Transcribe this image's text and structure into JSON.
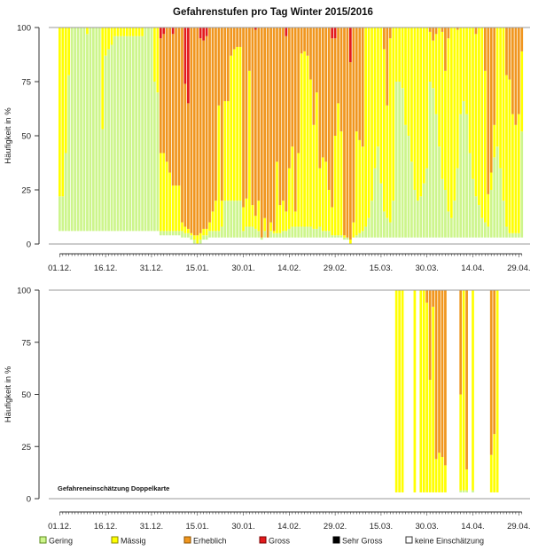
{
  "chart_data": [
    {
      "type": "bar",
      "stacked": true,
      "title": "Gefahrenstufen pro Tag Winter 2015/2016",
      "ylabel": "Häufigkeit in %",
      "xlabel": "",
      "ylim": [
        0,
        100
      ],
      "yticks": [
        "0",
        "25",
        "50",
        "75",
        "100"
      ],
      "xtick_labels": [
        "01.12.",
        "16.12.",
        "31.12.",
        "15.01.",
        "30.01.",
        "14.02.",
        "29.02.",
        "15.03.",
        "30.03.",
        "14.04.",
        "29.04."
      ],
      "first_day": "01.12.2015",
      "stack_order": [
        "keine Einschätzung",
        "Gering",
        "Mässig",
        "Erheblich",
        "Gross"
      ],
      "days": [
        [
          6,
          16,
          78,
          0,
          0
        ],
        [
          6,
          16,
          78,
          0,
          0
        ],
        [
          6,
          36,
          58,
          0,
          0
        ],
        [
          6,
          72,
          22,
          0,
          0
        ],
        [
          6,
          94,
          0,
          0,
          0
        ],
        [
          6,
          94,
          0,
          0,
          0
        ],
        [
          6,
          94,
          0,
          0,
          0
        ],
        [
          6,
          94,
          0,
          0,
          0
        ],
        [
          6,
          94,
          0,
          0,
          0
        ],
        [
          6,
          91,
          3,
          0,
          0
        ],
        [
          6,
          94,
          0,
          0,
          0
        ],
        [
          6,
          94,
          0,
          0,
          0
        ],
        [
          6,
          94,
          0,
          0,
          0
        ],
        [
          6,
          94,
          0,
          0,
          0
        ],
        [
          6,
          47,
          47,
          0,
          0
        ],
        [
          6,
          81,
          13,
          0,
          0
        ],
        [
          6,
          84,
          10,
          0,
          0
        ],
        [
          6,
          86,
          8,
          0,
          0
        ],
        [
          6,
          90,
          4,
          0,
          0
        ],
        [
          6,
          90,
          4,
          0,
          0
        ],
        [
          6,
          90,
          4,
          0,
          0
        ],
        [
          6,
          90,
          4,
          0,
          0
        ],
        [
          6,
          90,
          4,
          0,
          0
        ],
        [
          6,
          90,
          4,
          0,
          0
        ],
        [
          6,
          90,
          4,
          0,
          0
        ],
        [
          6,
          90,
          4,
          0,
          0
        ],
        [
          6,
          90,
          4,
          0,
          0
        ],
        [
          6,
          90,
          4,
          0,
          0
        ],
        [
          6,
          94,
          0,
          0,
          0
        ],
        [
          6,
          94,
          0,
          0,
          0
        ],
        [
          6,
          94,
          0,
          0,
          0
        ],
        [
          6,
          69,
          25,
          0,
          0
        ],
        [
          6,
          64,
          30,
          0,
          0
        ],
        [
          4,
          2,
          36,
          53,
          5
        ],
        [
          4,
          2,
          36,
          55,
          3
        ],
        [
          4,
          2,
          32,
          62,
          0
        ],
        [
          4,
          2,
          27,
          67,
          0
        ],
        [
          4,
          2,
          21,
          70,
          3
        ],
        [
          4,
          2,
          21,
          73,
          0
        ],
        [
          4,
          2,
          21,
          73,
          0
        ],
        [
          3,
          3,
          4,
          90,
          0
        ],
        [
          3,
          2,
          3,
          66,
          26
        ],
        [
          3,
          2,
          2,
          58,
          35
        ],
        [
          2,
          2,
          1,
          95,
          0
        ],
        [
          0,
          2,
          2,
          96,
          0
        ],
        [
          0,
          0,
          4,
          96,
          0
        ],
        [
          0,
          2,
          3,
          90,
          5
        ],
        [
          2,
          2,
          3,
          87,
          6
        ],
        [
          2,
          2,
          3,
          89,
          4
        ],
        [
          3,
          3,
          4,
          90,
          0
        ],
        [
          3,
          3,
          9,
          85,
          0
        ],
        [
          3,
          3,
          14,
          80,
          0
        ],
        [
          3,
          3,
          58,
          36,
          0
        ],
        [
          3,
          5,
          12,
          80,
          0
        ],
        [
          3,
          17,
          46,
          34,
          0
        ],
        [
          3,
          17,
          46,
          34,
          0
        ],
        [
          3,
          17,
          67,
          13,
          0
        ],
        [
          3,
          17,
          70,
          10,
          0
        ],
        [
          3,
          17,
          71,
          9,
          0
        ],
        [
          3,
          17,
          71,
          9,
          0
        ],
        [
          3,
          3,
          11,
          83,
          0
        ],
        [
          3,
          5,
          13,
          79,
          0
        ],
        [
          3,
          5,
          72,
          20,
          0
        ],
        [
          3,
          5,
          10,
          82,
          0
        ],
        [
          3,
          4,
          6,
          86,
          1
        ],
        [
          3,
          3,
          14,
          80,
          0
        ],
        [
          2,
          1,
          0,
          97,
          0
        ],
        [
          3,
          3,
          6,
          88,
          0
        ],
        [
          3,
          0,
          0,
          97,
          0
        ],
        [
          3,
          3,
          4,
          90,
          0
        ],
        [
          3,
          2,
          1,
          94,
          0
        ],
        [
          3,
          2,
          33,
          62,
          0
        ],
        [
          3,
          2,
          13,
          82,
          0
        ],
        [
          3,
          3,
          14,
          80,
          0
        ],
        [
          3,
          3,
          9,
          81,
          4
        ],
        [
          3,
          4,
          28,
          65,
          0
        ],
        [
          3,
          5,
          37,
          55,
          0
        ],
        [
          3,
          5,
          7,
          85,
          0
        ],
        [
          3,
          5,
          34,
          58,
          0
        ],
        [
          3,
          5,
          80,
          12,
          0
        ],
        [
          3,
          5,
          81,
          11,
          0
        ],
        [
          3,
          5,
          79,
          13,
          0
        ],
        [
          3,
          5,
          68,
          24,
          0
        ],
        [
          3,
          4,
          48,
          45,
          0
        ],
        [
          3,
          4,
          63,
          30,
          0
        ],
        [
          3,
          5,
          27,
          65,
          0
        ],
        [
          3,
          3,
          34,
          60,
          0
        ],
        [
          3,
          3,
          32,
          62,
          0
        ],
        [
          3,
          3,
          19,
          75,
          0
        ],
        [
          3,
          1,
          13,
          78,
          5
        ],
        [
          3,
          1,
          46,
          45,
          5
        ],
        [
          3,
          1,
          61,
          35,
          0
        ],
        [
          3,
          1,
          48,
          48,
          0
        ],
        [
          2,
          1,
          1,
          96,
          0
        ],
        [
          2,
          1,
          0,
          97,
          0
        ],
        [
          0,
          0,
          2,
          82,
          16
        ],
        [
          3,
          0,
          7,
          90,
          0
        ],
        [
          3,
          1,
          48,
          48,
          0
        ],
        [
          3,
          2,
          43,
          52,
          0
        ],
        [
          3,
          3,
          39,
          55,
          0
        ],
        [
          3,
          5,
          92,
          0,
          0
        ],
        [
          3,
          9,
          88,
          0,
          0
        ],
        [
          3,
          17,
          80,
          0,
          0
        ],
        [
          3,
          32,
          65,
          0,
          0
        ],
        [
          3,
          42,
          55,
          0,
          0
        ],
        [
          3,
          25,
          72,
          0,
          0
        ],
        [
          3,
          12,
          75,
          10,
          0
        ],
        [
          3,
          9,
          52,
          36,
          0
        ],
        [
          3,
          7,
          85,
          5,
          0
        ],
        [
          3,
          17,
          80,
          0,
          0
        ],
        [
          3,
          72,
          25,
          0,
          0
        ],
        [
          3,
          72,
          25,
          0,
          0
        ],
        [
          3,
          69,
          28,
          0,
          0
        ],
        [
          3,
          52,
          45,
          0,
          0
        ],
        [
          3,
          47,
          50,
          0,
          0
        ],
        [
          3,
          35,
          62,
          0,
          0
        ],
        [
          3,
          22,
          75,
          0,
          0
        ],
        [
          3,
          17,
          80,
          0,
          0
        ],
        [
          3,
          19,
          78,
          0,
          0
        ],
        [
          3,
          25,
          72,
          0,
          0
        ],
        [
          3,
          32,
          65,
          0,
          0
        ],
        [
          3,
          72,
          23,
          2,
          0
        ],
        [
          3,
          69,
          22,
          6,
          0
        ],
        [
          3,
          57,
          37,
          3,
          0
        ],
        [
          3,
          42,
          55,
          0,
          0
        ],
        [
          3,
          27,
          68,
          2,
          0
        ],
        [
          3,
          22,
          55,
          20,
          0
        ],
        [
          3,
          12,
          80,
          5,
          0
        ],
        [
          3,
          9,
          88,
          0,
          0
        ],
        [
          3,
          17,
          80,
          0,
          0
        ],
        [
          3,
          32,
          64,
          1,
          0
        ],
        [
          3,
          57,
          40,
          0,
          0
        ],
        [
          3,
          63,
          34,
          0,
          0
        ],
        [
          3,
          57,
          40,
          0,
          0
        ],
        [
          3,
          39,
          58,
          0,
          0
        ],
        [
          3,
          27,
          70,
          0,
          0
        ],
        [
          3,
          19,
          75,
          3,
          0
        ],
        [
          3,
          15,
          82,
          0,
          0
        ],
        [
          3,
          9,
          88,
          0,
          0
        ],
        [
          3,
          7,
          70,
          20,
          0
        ],
        [
          3,
          5,
          15,
          77,
          0
        ],
        [
          3,
          22,
          8,
          67,
          0
        ],
        [
          3,
          37,
          15,
          45,
          0
        ],
        [
          3,
          42,
          55,
          0,
          0
        ],
        [
          3,
          32,
          65,
          0,
          0
        ],
        [
          3,
          17,
          80,
          0,
          0
        ],
        [
          3,
          5,
          70,
          22,
          0
        ],
        [
          3,
          2,
          71,
          24,
          0
        ],
        [
          3,
          2,
          55,
          40,
          0
        ],
        [
          3,
          2,
          50,
          45,
          0
        ],
        [
          3,
          2,
          55,
          40,
          0
        ],
        [
          3,
          49,
          37,
          11,
          0
        ]
      ]
    },
    {
      "type": "bar",
      "stacked": true,
      "title": "",
      "annotation": "Gefahreneinschätzung Doppelkarte",
      "ylabel": "Häufigkeit in %",
      "ylim": [
        0,
        100
      ],
      "yticks": [
        "0",
        "25",
        "50",
        "75",
        "100"
      ],
      "xtick_labels": [
        "01.12.",
        "16.12.",
        "31.12.",
        "15.01.",
        "30.01.",
        "14.02.",
        "29.02.",
        "15.03.",
        "30.03.",
        "14.04.",
        "29.04."
      ],
      "stack_order": [
        "keine Einschätzung",
        "Gering",
        "Mässig",
        "Erheblich",
        "Gross"
      ],
      "days": [
        {
          "date": "20.03.",
          "values": [
            3,
            0,
            97,
            0,
            0
          ]
        },
        {
          "date": "21.03.",
          "values": [
            3,
            0,
            97,
            0,
            0
          ]
        },
        {
          "date": "22.03.",
          "values": [
            3,
            0,
            97,
            0,
            0
          ]
        },
        {
          "date": "26.03.",
          "values": [
            3,
            0,
            97,
            0,
            0
          ]
        },
        {
          "date": "28.03.",
          "values": [
            3,
            0,
            97,
            0,
            0
          ]
        },
        {
          "date": "29.03.",
          "values": [
            3,
            0,
            97,
            0,
            0
          ]
        },
        {
          "date": "30.03.",
          "values": [
            3,
            0,
            91,
            6,
            0
          ]
        },
        {
          "date": "31.03.",
          "values": [
            3,
            0,
            54,
            43,
            0
          ]
        },
        {
          "date": "01.04.",
          "values": [
            3,
            0,
            89,
            8,
            0
          ]
        },
        {
          "date": "02.04.",
          "values": [
            3,
            0,
            16,
            81,
            0
          ]
        },
        {
          "date": "03.04.",
          "values": [
            3,
            0,
            19,
            78,
            0
          ]
        },
        {
          "date": "04.04.",
          "values": [
            3,
            0,
            17,
            80,
            0
          ]
        },
        {
          "date": "05.04.",
          "values": [
            3,
            0,
            13,
            84,
            0
          ]
        },
        {
          "date": "10.04.",
          "values": [
            3,
            1,
            46,
            50,
            0
          ]
        },
        {
          "date": "11.04.",
          "values": [
            3,
            1,
            96,
            0,
            0
          ]
        },
        {
          "date": "12.04.",
          "values": [
            3,
            1,
            10,
            86,
            0
          ]
        },
        {
          "date": "14.04.",
          "values": [
            3,
            1,
            96,
            0,
            0
          ]
        },
        {
          "date": "20.04.",
          "values": [
            3,
            0,
            18,
            79,
            0
          ]
        },
        {
          "date": "21.04.",
          "values": [
            3,
            0,
            28,
            69,
            0
          ]
        },
        {
          "date": "22.04.",
          "values": [
            3,
            0,
            97,
            0,
            0
          ]
        }
      ]
    }
  ],
  "legend": {
    "position": "bottom",
    "items": [
      {
        "label": "Gering",
        "color": "#cdf58c",
        "border": "#5a8a1a"
      },
      {
        "label": "Mässig",
        "color": "#ffff00",
        "border": "#8a8a00"
      },
      {
        "label": "Erheblich",
        "color": "#f0961e",
        "border": "#8a5000"
      },
      {
        "label": "Gross",
        "color": "#e31a1c",
        "border": "#7a0000"
      },
      {
        "label": "Sehr Gross",
        "color": "#000000",
        "border": "#000000"
      },
      {
        "label": "keine Einschätzung",
        "color": "#ffffff",
        "border": "#333333"
      }
    ]
  },
  "colors": {
    "keine Einschätzung": "#ffffff",
    "Gering": "#cdf58c",
    "Mässig": "#ffff00",
    "Erheblich": "#f0961e",
    "Gross": "#e31a1c"
  }
}
